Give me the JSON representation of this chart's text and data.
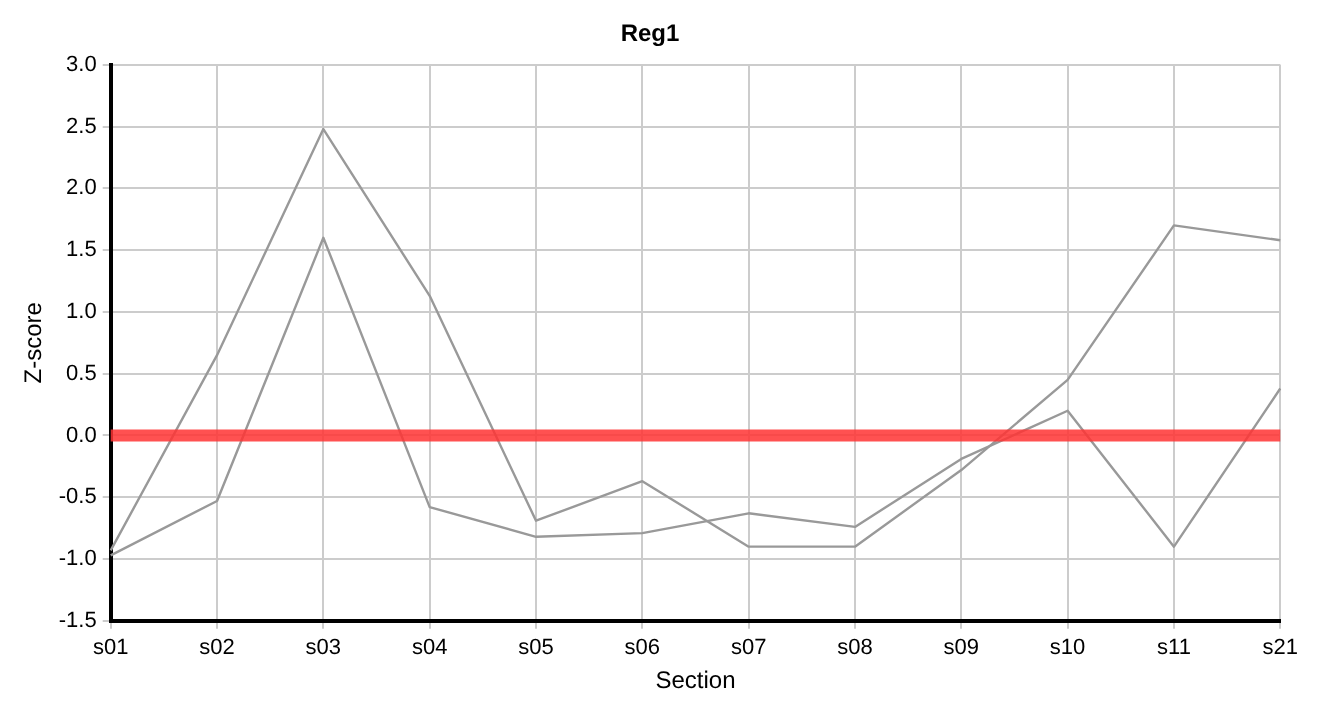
{
  "chart_data": {
    "type": "line",
    "title": "Reg1",
    "xlabel": "Section",
    "ylabel": "Z-score",
    "categories": [
      "s01",
      "s02",
      "s03",
      "s04",
      "s05",
      "s06",
      "s07",
      "s08",
      "s09",
      "s10",
      "s11",
      "s21"
    ],
    "series": [
      {
        "color": "#999999",
        "values": [
          -0.93,
          0.65,
          2.48,
          1.13,
          -0.69,
          -0.37,
          -0.9,
          -0.9,
          -0.28,
          0.45,
          1.7,
          1.58
        ]
      },
      {
        "color": "#999999",
        "values": [
          -0.97,
          -0.53,
          1.6,
          -0.58,
          -0.82,
          -0.79,
          -0.63,
          -0.74,
          -0.19,
          0.2,
          -0.9,
          0.38
        ]
      }
    ],
    "ylim": [
      -1.5,
      3.0
    ],
    "yticks": [
      {
        "value": -1.5,
        "label": "-1.5"
      },
      {
        "value": -1.0,
        "label": "-1.0"
      },
      {
        "value": -0.5,
        "label": "-0.5"
      },
      {
        "value": 0,
        "label": "0.0"
      },
      {
        "value": 0.5,
        "label": "0.5"
      },
      {
        "value": 1.0,
        "label": "1.0"
      },
      {
        "value": 1.5,
        "label": "1.5"
      },
      {
        "value": 2.0,
        "label": "2.0"
      },
      {
        "value": 2.5,
        "label": "2.5"
      },
      {
        "value": 3.0,
        "label": "3.0"
      }
    ],
    "ref_lines": [
      {
        "axis": "y",
        "value": 0,
        "color": "#ff3333"
      }
    ],
    "grid": true,
    "legend": false,
    "marker": "none",
    "line_style": "solid"
  }
}
